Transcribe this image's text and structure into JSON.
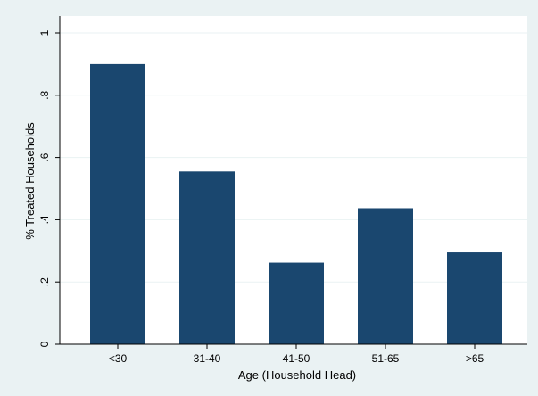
{
  "chart_data": {
    "type": "bar",
    "categories": [
      "<30",
      "31-40",
      "41-50",
      "51-65",
      ">65"
    ],
    "values": [
      0.9,
      0.555,
      0.262,
      0.437,
      0.295
    ],
    "title": "",
    "xlabel": "Age (Household Head)",
    "ylabel": "% Treated Households",
    "ylim": [
      0,
      1
    ],
    "yticks": [
      0,
      0.2,
      0.4,
      0.6,
      0.8,
      1
    ],
    "ytick_labels": [
      "0",
      ".2",
      ".4",
      ".6",
      ".8",
      "1"
    ],
    "grid": "horizontal",
    "legend": "none",
    "colors": {
      "bar": "#1a476f",
      "plot_background": "#ffffff",
      "outer_background": "#eaf2f3",
      "grid": "#eaf2f3"
    }
  }
}
